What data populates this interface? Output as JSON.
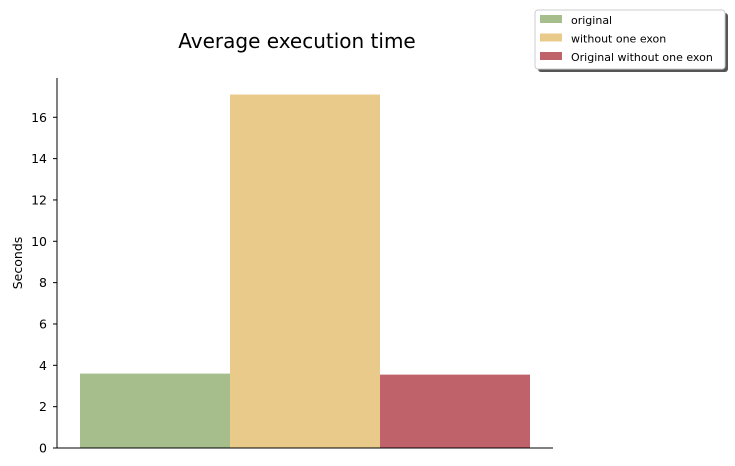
{
  "chart_data": {
    "type": "bar",
    "title": "Average execution time",
    "xlabel": "",
    "ylabel": "Seconds",
    "ylim": [
      0,
      17.9
    ],
    "yticks": [
      0,
      2,
      4,
      6,
      8,
      10,
      12,
      14,
      16
    ],
    "grid": false,
    "legend_position": "top-right",
    "series": [
      {
        "name": "original",
        "value": 3.6,
        "color": "#a5be8c"
      },
      {
        "name": "without one exon",
        "value": 17.1,
        "color": "#e9ca8a"
      },
      {
        "name": "Original without one exon",
        "value": 3.55,
        "color": "#bf626a"
      }
    ]
  }
}
